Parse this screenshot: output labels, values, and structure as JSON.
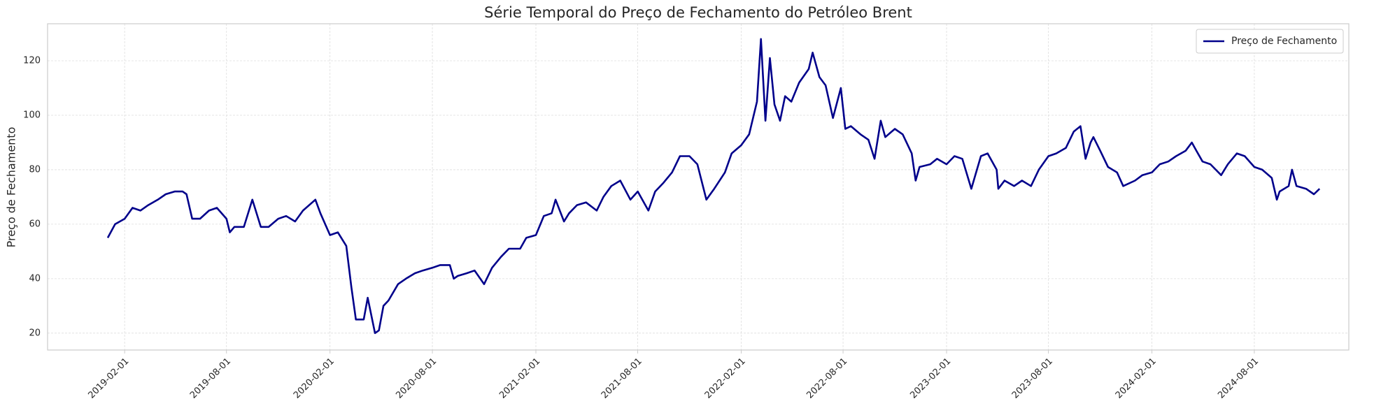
{
  "chart_data": {
    "type": "line",
    "title": "Série Temporal do Preço de Fechamento do Petróleo Brent",
    "y_label": "Preço de Fechamento",
    "x": [
      "2019-01-02",
      "2019-01-15",
      "2019-02-01",
      "2019-02-15",
      "2019-03-01",
      "2019-03-15",
      "2019-04-01",
      "2019-04-15",
      "2019-05-01",
      "2019-05-15",
      "2019-05-22",
      "2019-06-01",
      "2019-06-15",
      "2019-07-01",
      "2019-07-15",
      "2019-08-01",
      "2019-08-07",
      "2019-08-15",
      "2019-09-01",
      "2019-09-16",
      "2019-10-01",
      "2019-10-15",
      "2019-11-01",
      "2019-11-15",
      "2019-12-01",
      "2019-12-15",
      "2020-01-06",
      "2020-01-15",
      "2020-02-01",
      "2020-02-15",
      "2020-03-01",
      "2020-03-10",
      "2020-03-18",
      "2020-04-01",
      "2020-04-08",
      "2020-04-21",
      "2020-04-28",
      "2020-05-06",
      "2020-05-15",
      "2020-06-01",
      "2020-06-15",
      "2020-07-01",
      "2020-07-15",
      "2020-08-01",
      "2020-08-15",
      "2020-09-01",
      "2020-09-08",
      "2020-09-15",
      "2020-10-01",
      "2020-10-15",
      "2020-11-01",
      "2020-11-15",
      "2020-12-01",
      "2020-12-15",
      "2021-01-04",
      "2021-01-15",
      "2021-02-01",
      "2021-02-15",
      "2021-03-01",
      "2021-03-08",
      "2021-03-23",
      "2021-04-01",
      "2021-04-15",
      "2021-05-01",
      "2021-05-20",
      "2021-06-01",
      "2021-06-15",
      "2021-07-01",
      "2021-07-19",
      "2021-08-01",
      "2021-08-20",
      "2021-09-01",
      "2021-09-15",
      "2021-10-01",
      "2021-10-15",
      "2021-11-01",
      "2021-11-15",
      "2021-12-01",
      "2021-12-15",
      "2022-01-03",
      "2022-01-15",
      "2022-02-01",
      "2022-02-15",
      "2022-03-01",
      "2022-03-08",
      "2022-03-16",
      "2022-03-24",
      "2022-04-01",
      "2022-04-11",
      "2022-04-20",
      "2022-05-01",
      "2022-05-15",
      "2022-06-01",
      "2022-06-08",
      "2022-06-20",
      "2022-07-01",
      "2022-07-14",
      "2022-07-28",
      "2022-08-05",
      "2022-08-15",
      "2022-09-01",
      "2022-09-15",
      "2022-09-26",
      "2022-10-07",
      "2022-10-15",
      "2022-11-01",
      "2022-11-15",
      "2022-12-01",
      "2022-12-08",
      "2022-12-15",
      "2023-01-03",
      "2023-01-15",
      "2023-02-01",
      "2023-02-15",
      "2023-03-01",
      "2023-03-17",
      "2023-04-03",
      "2023-04-15",
      "2023-05-01",
      "2023-05-04",
      "2023-05-15",
      "2023-06-01",
      "2023-06-15",
      "2023-07-01",
      "2023-07-15",
      "2023-08-01",
      "2023-08-15",
      "2023-09-01",
      "2023-09-15",
      "2023-09-27",
      "2023-10-06",
      "2023-10-15",
      "2023-10-20",
      "2023-11-01",
      "2023-11-15",
      "2023-12-01",
      "2023-12-12",
      "2024-01-02",
      "2024-01-15",
      "2024-02-01",
      "2024-02-15",
      "2024-03-01",
      "2024-03-15",
      "2024-04-01",
      "2024-04-12",
      "2024-04-20",
      "2024-05-01",
      "2024-05-15",
      "2024-06-03",
      "2024-06-15",
      "2024-07-01",
      "2024-07-15",
      "2024-08-01",
      "2024-08-15",
      "2024-09-01",
      "2024-09-10",
      "2024-09-15",
      "2024-10-01",
      "2024-10-07",
      "2024-10-15",
      "2024-11-01",
      "2024-11-15",
      "2024-11-25"
    ],
    "series": [
      {
        "name": "Preço de Fechamento",
        "color": "#00008b",
        "values": [
          55,
          60,
          62,
          66,
          65,
          67,
          69,
          71,
          72,
          72,
          71,
          62,
          62,
          65,
          66,
          62,
          57,
          59,
          59,
          69,
          59,
          59,
          62,
          63,
          61,
          65,
          69,
          64,
          56,
          57,
          52,
          37,
          25,
          25,
          33,
          20,
          21,
          30,
          32,
          38,
          40,
          42,
          43,
          44,
          45,
          45,
          40,
          41,
          42,
          43,
          38,
          44,
          48,
          51,
          51,
          55,
          56,
          63,
          64,
          69,
          61,
          64,
          67,
          68,
          65,
          70,
          74,
          76,
          69,
          72,
          65,
          72,
          75,
          79,
          85,
          85,
          82,
          69,
          73,
          79,
          86,
          89,
          93,
          105,
          128,
          98,
          121,
          104,
          98,
          107,
          105,
          112,
          117,
          123,
          114,
          111,
          99,
          110,
          95,
          96,
          93,
          91,
          84,
          98,
          92,
          95,
          93,
          86,
          76,
          81,
          82,
          84,
          82,
          85,
          84,
          73,
          85,
          86,
          80,
          73,
          76,
          74,
          76,
          74,
          80,
          85,
          86,
          88,
          94,
          96,
          84,
          90,
          92,
          87,
          81,
          79,
          74,
          76,
          78,
          79,
          82,
          83,
          85,
          87,
          90,
          87,
          83,
          82,
          78,
          82,
          86,
          85,
          81,
          80,
          77,
          69,
          72,
          74,
          80,
          74,
          73,
          71,
          73
        ]
      }
    ],
    "xlim": [
      "2018-09-17",
      "2025-01-16"
    ],
    "xticks": [
      "2019-02-01",
      "2019-08-01",
      "2020-02-01",
      "2020-08-01",
      "2021-02-01",
      "2021-08-01",
      "2022-02-01",
      "2022-08-01",
      "2023-02-01",
      "2023-08-01",
      "2024-02-01",
      "2024-08-01"
    ],
    "ylim": [
      13.8,
      133.6
    ],
    "yticks": [
      20,
      40,
      60,
      80,
      100,
      120
    ],
    "grid": true,
    "legend": "upper right"
  }
}
